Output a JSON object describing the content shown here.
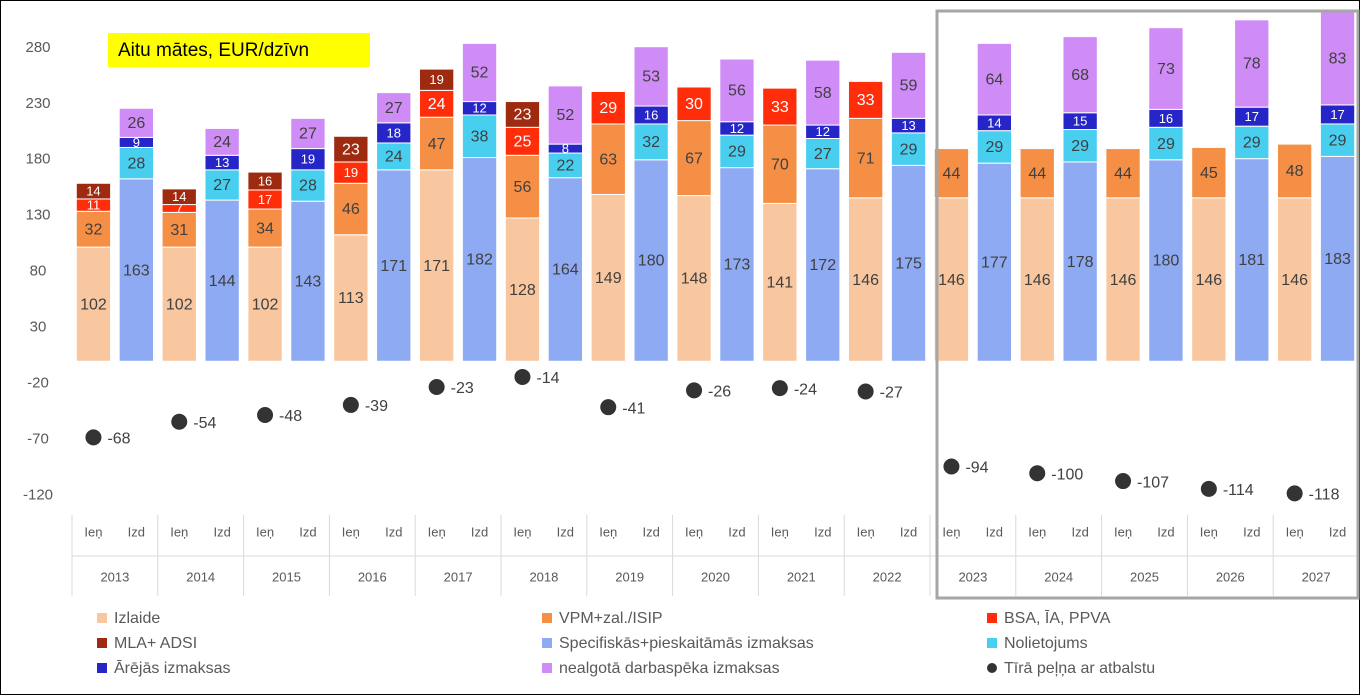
{
  "chart_data": {
    "type": "stacked-bar",
    "annotation": "Aitu mātes, EUR/dzīvn",
    "categories": [
      "2013",
      "2014",
      "2015",
      "2016",
      "2017",
      "2018",
      "2019",
      "2020",
      "2021",
      "2022",
      "2023",
      "2024",
      "2025",
      "2026",
      "2027"
    ],
    "stacks": [
      {
        "label": "Ieņ",
        "series": [
          {
            "name": "Izlaide",
            "color": "#f9c79f",
            "values": [
              102,
              102,
              102,
              113,
              171,
              128,
              149,
              148,
              141,
              146,
              146,
              146,
              146,
              146,
              146
            ]
          },
          {
            "name": "VPM+zal./ISIP",
            "color": "#f58f45",
            "values": [
              32,
              31,
              34,
              46,
              47,
              56,
              63,
              67,
              70,
              71,
              44,
              44,
              44,
              45,
              48
            ]
          },
          {
            "name": "BSA, ĪA, PPVA",
            "color": "#ff2d0a",
            "values": [
              11,
              7,
              17,
              19,
              24,
              25,
              29,
              30,
              33,
              33,
              null,
              null,
              null,
              null,
              null
            ]
          },
          {
            "name": "MLA+ ADSI",
            "color": "#9e2a10",
            "values": [
              14,
              14,
              16,
              23,
              19,
              23,
              null,
              null,
              null,
              null,
              null,
              null,
              null,
              null,
              null
            ]
          }
        ]
      },
      {
        "label": "Izd",
        "series": [
          {
            "name": "Specifiskās+pieskaitāmās izmaksas",
            "color": "#8eaaf2",
            "values": [
              163,
              144,
              143,
              171,
              182,
              164,
              180,
              173,
              172,
              175,
              177,
              178,
              180,
              181,
              183
            ]
          },
          {
            "name": "Nolietojums",
            "color": "#48cff0",
            "values": [
              28,
              27,
              28,
              24,
              38,
              22,
              32,
              29,
              27,
              29,
              29,
              29,
              29,
              29,
              29
            ]
          },
          {
            "name": "Ārējās izmaksas",
            "color": "#2626c8",
            "values": [
              9,
              13,
              19,
              18,
              12,
              8,
              16,
              12,
              12,
              13,
              14,
              15,
              16,
              17,
              17
            ]
          },
          {
            "name": "nealgotā darbaspēka izmaksas",
            "color": "#cf8cf6",
            "values": [
              26,
              24,
              27,
              27,
              52,
              52,
              53,
              56,
              58,
              59,
              64,
              68,
              73,
              78,
              83
            ]
          }
        ]
      }
    ],
    "points": {
      "name": "Tīrā peļņa ar atbalstu",
      "color": "#333333",
      "values": [
        -68,
        -54,
        -48,
        -39,
        -23,
        -14,
        -41,
        -26,
        -24,
        -27,
        -94,
        -100,
        -107,
        -114,
        -118
      ]
    },
    "ylim": [
      -140,
      312
    ],
    "yticks": [
      -120,
      -70,
      -20,
      30,
      80,
      130,
      180,
      230,
      280
    ],
    "grid": false
  }
}
